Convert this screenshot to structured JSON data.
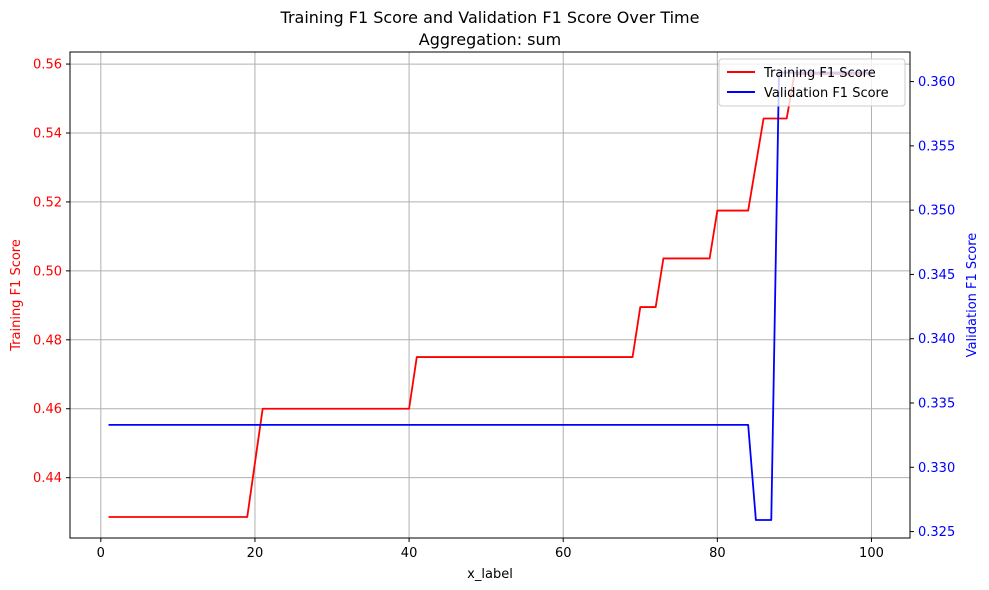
{
  "chart_data": {
    "type": "line",
    "title": "Training F1 Score and Validation F1 Score Over Time",
    "subtitle": "Aggregation: sum",
    "xlabel": "x_label",
    "ylabel_left": "Training F1 Score",
    "ylabel_right": "Validation F1 Score",
    "xlim": [
      -4,
      105
    ],
    "ylim_left": [
      0.4225,
      0.5635
    ],
    "ylim_right": [
      0.3245,
      0.3623
    ],
    "x_ticks": [
      0,
      20,
      40,
      60,
      80,
      100
    ],
    "y_ticks_left": [
      0.44,
      0.46,
      0.48,
      0.5,
      0.52,
      0.54,
      0.56
    ],
    "y_ticks_right": [
      0.325,
      0.33,
      0.335,
      0.34,
      0.345,
      0.35,
      0.355,
      0.36
    ],
    "grid": true,
    "legend_position": "top-right",
    "colors": {
      "left": "#ff0000",
      "right": "#0000ff"
    },
    "series": [
      {
        "name": "Training F1 Score",
        "axis": "left",
        "color": "#ff0000",
        "x": [
          1,
          19,
          21,
          40,
          41,
          69,
          70,
          72,
          73,
          79,
          80,
          84,
          86,
          89,
          90,
          100
        ],
        "y": [
          0.4286,
          0.4286,
          0.46,
          0.46,
          0.475,
          0.475,
          0.4895,
          0.4895,
          0.5036,
          0.5036,
          0.5175,
          0.5175,
          0.5442,
          0.5442,
          0.5571,
          0.5571
        ]
      },
      {
        "name": "Validation F1 Score",
        "axis": "right",
        "color": "#0000ff",
        "x": [
          1,
          84,
          85,
          87,
          88,
          100
        ],
        "y": [
          0.3333,
          0.3333,
          0.3259,
          0.3259,
          0.3607,
          0.3607
        ]
      }
    ]
  }
}
